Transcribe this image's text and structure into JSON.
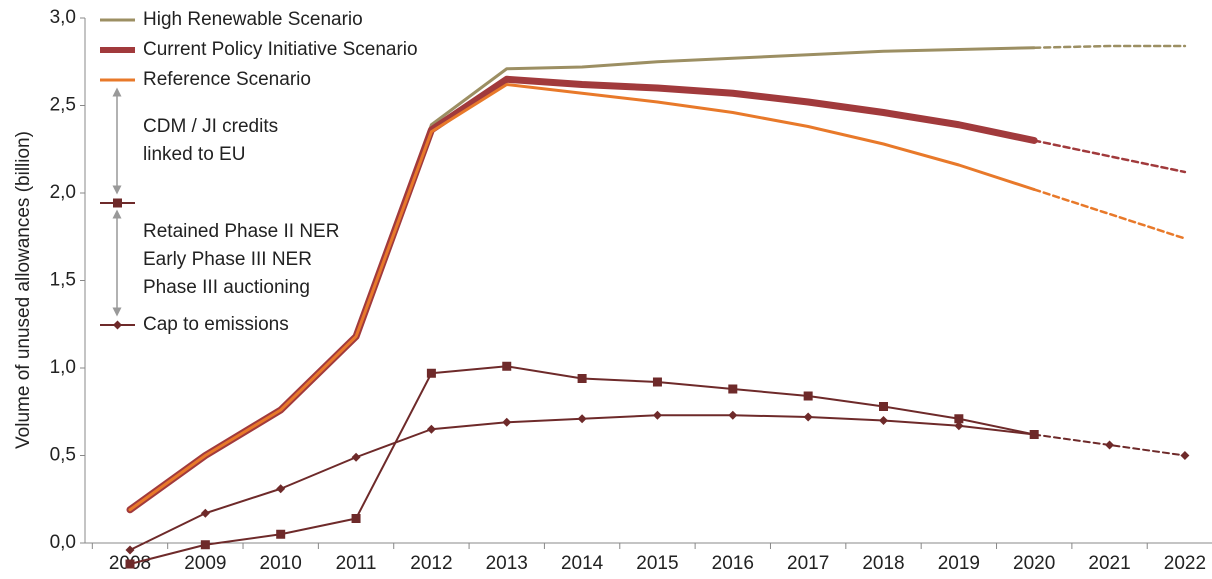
{
  "chart_data": {
    "type": "line",
    "y_label": "Volume of unused allowances (billion)",
    "categories": [
      "2008",
      "2009",
      "2010",
      "2011",
      "2012",
      "2013",
      "2014",
      "2015",
      "2016",
      "2017",
      "2018",
      "2019",
      "2020",
      "2021",
      "2022"
    ],
    "ylim": [
      0,
      3
    ],
    "yticks": [
      {
        "value": 0,
        "label": "0,0"
      },
      {
        "value": 0.5,
        "label": "0,5"
      },
      {
        "value": 1,
        "label": "1,0"
      },
      {
        "value": 1.5,
        "label": "1,5"
      },
      {
        "value": 2,
        "label": "2,0"
      },
      {
        "value": 2.5,
        "label": "2,5"
      },
      {
        "value": 3,
        "label": "3,0"
      }
    ],
    "dash_after": "2020",
    "series": [
      {
        "name": "High Renewable Scenario",
        "color": "#9c8f63",
        "width": 3,
        "values": [
          0.19,
          0.5,
          0.76,
          1.18,
          2.39,
          2.71,
          2.72,
          2.75,
          2.77,
          2.79,
          2.81,
          2.82,
          2.83,
          2.84,
          2.84
        ]
      },
      {
        "name": "Current Policy Initiative Scenario",
        "color": "#a13a3c",
        "width": 7,
        "values": [
          0.19,
          0.5,
          0.76,
          1.18,
          2.36,
          2.65,
          2.62,
          2.6,
          2.57,
          2.52,
          2.46,
          2.39,
          2.3,
          2.21,
          2.12
        ]
      },
      {
        "name": "Reference Scenario",
        "color": "#e8792a",
        "width": 3,
        "values": [
          0.19,
          0.5,
          0.76,
          1.18,
          2.35,
          2.62,
          2.57,
          2.52,
          2.46,
          2.38,
          2.28,
          2.16,
          2.02,
          1.88,
          1.74
        ]
      },
      {
        "name": [
          "Retained Phase II NER",
          "Early Phase III NER",
          "Phase III auctioning"
        ],
        "color": "#6e2a2a",
        "width": 2,
        "marker": "square",
        "values": [
          -0.12,
          -0.01,
          0.05,
          0.14,
          0.97,
          1.01,
          0.94,
          0.92,
          0.88,
          0.84,
          0.78,
          0.71,
          0.62,
          null,
          null
        ]
      },
      {
        "name": "Cap to emissions",
        "color": "#6e2a2a",
        "width": 2,
        "marker": "diamond",
        "values": [
          -0.04,
          0.17,
          0.31,
          0.49,
          0.65,
          0.69,
          0.71,
          0.73,
          0.73,
          0.72,
          0.7,
          0.67,
          0.62,
          0.56,
          0.5
        ]
      }
    ],
    "annotations": [
      "CDM / JI credits",
      "linked to EU"
    ]
  }
}
